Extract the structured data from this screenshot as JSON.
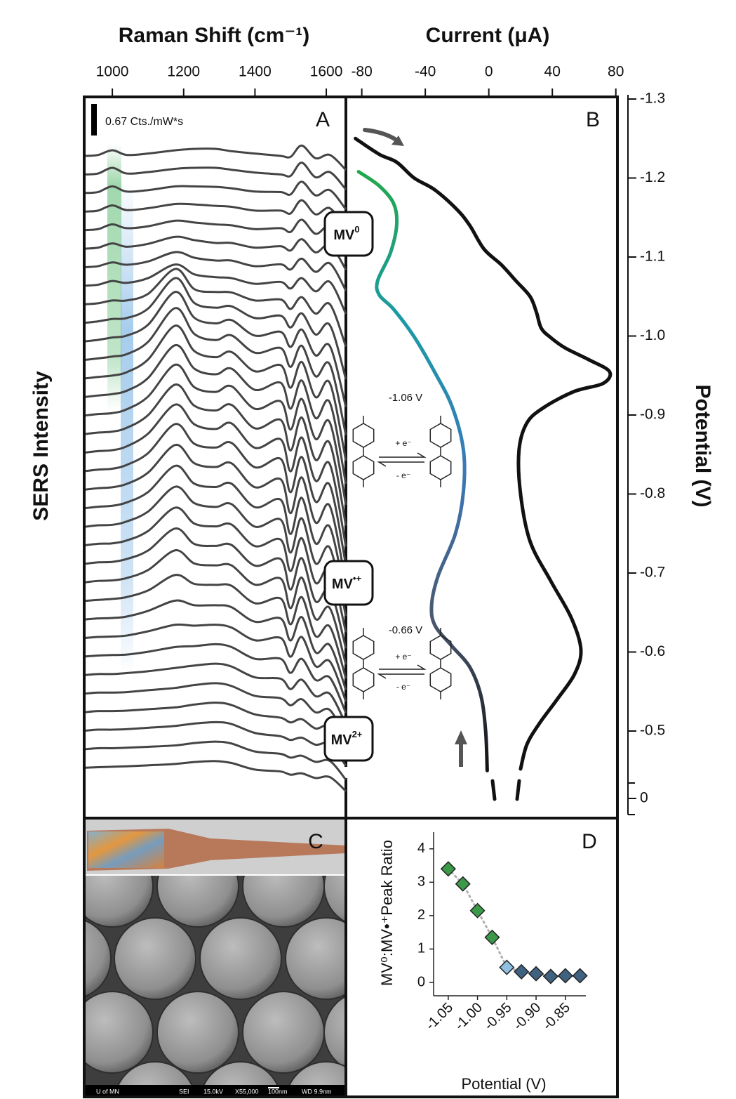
{
  "chart_data": [
    {
      "type": "spectra",
      "panel_label": "A",
      "x_label": "Raman Shift (cm⁻¹)",
      "y_label": "SERS Intensity",
      "scale_bar": {
        "value": 0.67,
        "label": "0.67 Cts./mW*s"
      },
      "xlim": [
        925,
        1655
      ],
      "xticks": [
        1000,
        1200,
        1400,
        1600
      ],
      "state_labels": [
        {
          "base": "MV",
          "sup": "0"
        },
        {
          "base": "MV",
          "sup": "•+"
        },
        {
          "base": "MV",
          "sup": "2+"
        }
      ],
      "x": [
        925,
        960,
        1000,
        1040,
        1100,
        1177,
        1230,
        1290,
        1334,
        1400,
        1472,
        1500,
        1531,
        1570,
        1610,
        1655
      ],
      "series": [
        {
          "color": "#444444",
          "values": [
            0,
            0.02,
            0.12,
            0.02,
            0.05,
            0.12,
            0.15,
            0.15,
            0.1,
            0.05,
            0,
            -0.02,
            0.22,
            -0.05,
            0.02,
            -0.3
          ]
        },
        {
          "color": "#444444",
          "values": [
            0,
            0.02,
            0.14,
            0.02,
            0.05,
            0.12,
            0.14,
            0.14,
            0.1,
            0.04,
            0,
            -0.03,
            0.25,
            -0.06,
            0.05,
            -0.32
          ]
        },
        {
          "color": "#444444",
          "values": [
            0,
            0.02,
            0.14,
            0.03,
            0.06,
            0.14,
            0.14,
            0.13,
            0.1,
            0.03,
            0.02,
            -0.03,
            0.24,
            -0.05,
            0.06,
            -0.35
          ]
        },
        {
          "color": "#444444",
          "values": [
            0,
            0.02,
            0.13,
            0.03,
            0.07,
            0.16,
            0.15,
            0.12,
            0.1,
            0.02,
            0.02,
            -0.04,
            0.24,
            -0.06,
            0.07,
            -0.38
          ]
        },
        {
          "color": "#444444",
          "values": [
            0,
            0.02,
            0.12,
            0.04,
            0.08,
            0.2,
            0.16,
            0.12,
            0.1,
            0.02,
            0.04,
            -0.04,
            0.22,
            -0.08,
            0.08,
            -0.4
          ]
        },
        {
          "color": "#444444",
          "values": [
            0,
            0.02,
            0.11,
            0.04,
            0.1,
            0.25,
            0.18,
            0.12,
            0.12,
            0.02,
            0.05,
            -0.04,
            0.2,
            -0.08,
            0.08,
            -0.45
          ]
        },
        {
          "color": "#444444",
          "values": [
            0,
            0.02,
            0.1,
            0.05,
            0.12,
            0.32,
            0.2,
            0.14,
            0.14,
            0.02,
            0.06,
            -0.05,
            0.18,
            -0.1,
            0.08,
            -0.5
          ]
        },
        {
          "color": "#444444",
          "values": [
            0,
            0.02,
            0.1,
            0.06,
            0.16,
            0.45,
            0.24,
            0.18,
            0.16,
            0.04,
            0.08,
            -0.06,
            0.16,
            -0.12,
            0.08,
            -0.6
          ]
        },
        {
          "color": "#444444",
          "values": [
            0,
            0.02,
            0.08,
            0.08,
            0.22,
            0.75,
            0.32,
            0.26,
            0.25,
            0.08,
            0.1,
            -0.1,
            0.15,
            -0.2,
            0,
            -0.9
          ]
        },
        {
          "color": "#444444",
          "values": [
            0,
            0.03,
            0.08,
            0.1,
            0.3,
            0.95,
            0.42,
            0.32,
            0.35,
            0.1,
            0.15,
            -0.1,
            0.2,
            -0.25,
            -0.05,
            -1.2
          ]
        },
        {
          "color": "#444444",
          "values": [
            0,
            0.03,
            0.08,
            0.12,
            0.35,
            1.05,
            0.5,
            0.38,
            0.45,
            0.12,
            0.2,
            -0.12,
            0.25,
            -0.3,
            -0.1,
            -1.4
          ]
        },
        {
          "color": "#444444",
          "values": [
            0,
            0.03,
            0.07,
            0.12,
            0.38,
            1.1,
            0.55,
            0.42,
            0.52,
            0.15,
            0.25,
            -0.15,
            0.3,
            -0.35,
            -0.1,
            -1.6
          ]
        },
        {
          "color": "#444444",
          "values": [
            0,
            0.03,
            0.06,
            0.13,
            0.4,
            1.12,
            0.58,
            0.45,
            0.56,
            0.15,
            0.28,
            -0.2,
            0.35,
            -0.4,
            -0.1,
            -1.75
          ]
        },
        {
          "color": "#444444",
          "values": [
            0,
            0.03,
            0.06,
            0.13,
            0.4,
            1.1,
            0.6,
            0.48,
            0.6,
            0.15,
            0.3,
            -0.25,
            0.35,
            -0.45,
            -0.12,
            -1.85
          ]
        },
        {
          "color": "#444444",
          "values": [
            0,
            0.03,
            0.05,
            0.13,
            0.4,
            1.08,
            0.6,
            0.5,
            0.62,
            0.14,
            0.3,
            -0.3,
            0.35,
            -0.5,
            -0.15,
            -1.9
          ]
        },
        {
          "color": "#444444",
          "values": [
            0,
            0.03,
            0.05,
            0.13,
            0.4,
            1.05,
            0.6,
            0.5,
            0.62,
            0.12,
            0.3,
            -0.35,
            0.35,
            -0.55,
            -0.2,
            -1.95
          ]
        },
        {
          "color": "#444444",
          "values": [
            0,
            0.03,
            0.05,
            0.13,
            0.4,
            1.02,
            0.6,
            0.5,
            0.62,
            0.1,
            0.28,
            -0.4,
            0.32,
            -0.6,
            -0.25,
            -2
          ]
        },
        {
          "color": "#444444",
          "values": [
            0,
            0.03,
            0.05,
            0.13,
            0.38,
            1,
            0.58,
            0.5,
            0.6,
            0.08,
            0.26,
            -0.45,
            0.3,
            -0.65,
            -0.3,
            -2
          ]
        },
        {
          "color": "#444444",
          "values": [
            0,
            0.03,
            0.05,
            0.12,
            0.36,
            0.95,
            0.56,
            0.48,
            0.56,
            0.05,
            0.22,
            -0.5,
            0.26,
            -0.7,
            -0.35,
            -2
          ]
        },
        {
          "color": "#444444",
          "values": [
            0,
            0.03,
            0.05,
            0.12,
            0.34,
            0.9,
            0.52,
            0.45,
            0.52,
            0.02,
            0.18,
            -0.55,
            0.22,
            -0.75,
            -0.4,
            -1.95
          ]
        },
        {
          "color": "#444444",
          "values": [
            0,
            0.03,
            0.04,
            0.11,
            0.32,
            0.85,
            0.5,
            0.42,
            0.48,
            0,
            0.15,
            -0.55,
            0.18,
            -0.78,
            -0.45,
            -1.9
          ]
        },
        {
          "color": "#444444",
          "values": [
            0,
            0.03,
            0.04,
            0.1,
            0.3,
            0.8,
            0.46,
            0.4,
            0.44,
            -0.02,
            0.12,
            -0.55,
            0.15,
            -0.8,
            -0.5,
            -1.85
          ]
        },
        {
          "color": "#444444",
          "values": [
            0,
            0.03,
            0.04,
            0.1,
            0.28,
            0.75,
            0.42,
            0.38,
            0.4,
            -0.04,
            0.1,
            -0.55,
            0.12,
            -0.8,
            -0.55,
            -1.8
          ]
        },
        {
          "color": "#444444",
          "values": [
            0,
            0.03,
            0.04,
            0.09,
            0.26,
            0.68,
            0.4,
            0.36,
            0.36,
            -0.05,
            0.08,
            -0.55,
            0.1,
            -0.78,
            -0.55,
            -1.75
          ]
        },
        {
          "color": "#444444",
          "values": [
            0,
            0.02,
            0.04,
            0.08,
            0.22,
            0.55,
            0.36,
            0.34,
            0.32,
            -0.05,
            0.05,
            -0.5,
            0.08,
            -0.75,
            -0.55,
            -1.65
          ]
        },
        {
          "color": "#444444",
          "values": [
            0,
            0.02,
            0.03,
            0.06,
            0.18,
            0.4,
            0.3,
            0.3,
            0.26,
            -0.05,
            0.02,
            -0.45,
            0.05,
            -0.7,
            -0.55,
            -1.5
          ]
        },
        {
          "color": "#444444",
          "values": [
            0,
            0.02,
            0.03,
            0.05,
            0.14,
            0.28,
            0.26,
            0.28,
            0.22,
            -0.05,
            0,
            -0.4,
            0.02,
            -0.6,
            -0.5,
            -1.35
          ]
        },
        {
          "color": "#444444",
          "values": [
            0,
            0.02,
            0.03,
            0.04,
            0.1,
            0.2,
            0.22,
            0.26,
            0.2,
            -0.05,
            -0.05,
            -0.35,
            -0.05,
            -0.5,
            -0.45,
            -1.2
          ]
        },
        {
          "color": "#444444",
          "values": [
            0,
            0.02,
            0.02,
            0.04,
            0.08,
            0.15,
            0.2,
            0.24,
            0.18,
            -0.05,
            -0.08,
            -0.3,
            -0.1,
            -0.45,
            -0.4,
            -1.05
          ]
        },
        {
          "color": "#444444",
          "values": [
            0,
            0.02,
            0.02,
            0.03,
            0.07,
            0.12,
            0.18,
            0.22,
            0.16,
            -0.05,
            -0.1,
            -0.25,
            -0.12,
            -0.4,
            -0.35,
            -0.95
          ]
        },
        {
          "color": "#444444",
          "values": [
            0,
            0.02,
            0.02,
            0.03,
            0.06,
            0.1,
            0.16,
            0.2,
            0.15,
            -0.05,
            -0.12,
            -0.22,
            -0.15,
            -0.35,
            -0.3,
            -0.85
          ]
        },
        {
          "color": "#444444",
          "values": [
            0,
            0.02,
            0.02,
            0.03,
            0.06,
            0.1,
            0.15,
            0.18,
            0.14,
            -0.05,
            -0.12,
            -0.2,
            -0.15,
            -0.3,
            -0.28,
            -0.75
          ]
        },
        {
          "color": "#444444",
          "values": [
            0,
            0.02,
            0.02,
            0.03,
            0.05,
            0.08,
            0.13,
            0.16,
            0.12,
            -0.05,
            -0.1,
            -0.18,
            -0.14,
            -0.27,
            -0.25,
            -0.65
          ]
        },
        {
          "color": "#444444",
          "values": [
            0,
            0.01,
            0.02,
            0.03,
            0.05,
            0.08,
            0.12,
            0.14,
            0.1,
            -0.04,
            -0.08,
            -0.15,
            -0.12,
            -0.22,
            -0.2,
            -0.5
          ]
        }
      ]
    },
    {
      "type": "cv",
      "panel_label": "B",
      "x_label": "Current (μA)",
      "y_label": "Potential (V)",
      "xlim": [
        -90,
        81
      ],
      "xticks": [
        -80,
        -40,
        0,
        40,
        80
      ],
      "ylim": [
        -1.3,
        0
      ],
      "yticks": [
        -1.3,
        -1.2,
        -1.1,
        {
          "value": -1,
          "label": "-1.0"
        },
        -0.9,
        -0.8,
        -0.7,
        -0.6,
        -0.5,
        0
      ],
      "annotations": [
        "-1.06 V",
        "+ e⁻",
        "- e⁻",
        "-0.66 V",
        "+ e⁻",
        "- e⁻"
      ],
      "series": [
        {
          "color": "#111111",
          "x": [
            -84,
            -69,
            -58,
            -47,
            -34,
            -20,
            -12,
            -3,
            8,
            17,
            26,
            30,
            33,
            39,
            48,
            63,
            76,
            72,
            54,
            35,
            24,
            19,
            20,
            26,
            39,
            52,
            58,
            54,
            43,
            32,
            24,
            20
          ],
          "values": [
            -1.25,
            -1.23,
            -1.22,
            -1.2,
            -1.185,
            -1.16,
            -1.14,
            -1.11,
            -1.09,
            -1.07,
            -1.05,
            -1.03,
            -1.01,
            -0.998,
            -0.985,
            -0.97,
            -0.955,
            -0.94,
            -0.93,
            -0.91,
            -0.89,
            -0.855,
            -0.8,
            -0.74,
            -0.69,
            -0.643,
            -0.603,
            -0.572,
            -0.54,
            -0.51,
            -0.483,
            -0.452
          ]
        },
        {
          "colors": [
            "#22a84a",
            "#1b9aa6",
            "#3b78b8",
            "#4a5870",
            "#111111"
          ],
          "x": [
            -82,
            -69,
            -60,
            -58,
            -62,
            -70,
            -69,
            -60,
            -47,
            -34,
            -23,
            -16,
            -16,
            -21,
            -32,
            -36,
            -34,
            -23,
            -12,
            -5,
            -2,
            -1
          ],
          "values": [
            -1.208,
            -1.19,
            -1.168,
            -1.141,
            -1.105,
            -1.07,
            -1.052,
            -1.034,
            -0.999,
            -0.954,
            -0.91,
            -0.856,
            -0.803,
            -0.75,
            -0.696,
            -0.66,
            -0.634,
            -0.607,
            -0.581,
            -0.545,
            -0.5,
            -0.45
          ]
        }
      ]
    },
    {
      "type": "scatter",
      "panel_label": "D",
      "x_label": "Potential (V)",
      "y_label": "MV⁰:MV•⁺Peak Ratio",
      "xlim": [
        -1.075,
        -0.815
      ],
      "xticks": [
        -1.05,
        {
          "value": -1,
          "label": "-1.00"
        },
        -0.95,
        {
          "value": -0.9,
          "label": "-0.90"
        },
        -0.85
      ],
      "ylim": [
        -0.4,
        4.5
      ],
      "yticks": [
        0,
        1,
        2,
        3,
        4
      ],
      "x": [
        -1.05,
        -1.025,
        -1,
        -0.975,
        -0.95,
        -0.925,
        -0.9,
        -0.875,
        -0.85,
        -0.825
      ],
      "values": [
        3.4,
        2.95,
        2.15,
        1.35,
        0.45,
        0.32,
        0.26,
        0.18,
        0.2,
        0.2
      ],
      "colors": [
        "#3a9a48",
        "#3a9a48",
        "#3a9a48",
        "#3a9a48",
        "#8fc0e4",
        "#3f6280",
        "#3f6280",
        "#3f6280",
        "#3f6280",
        "#3f6280"
      ]
    }
  ],
  "panel_c": {
    "label": "C",
    "sem_caption": [
      "U of MN",
      "SEI",
      "15.0kV",
      "X55,000",
      "100nm",
      "WD 9.9nm"
    ]
  }
}
